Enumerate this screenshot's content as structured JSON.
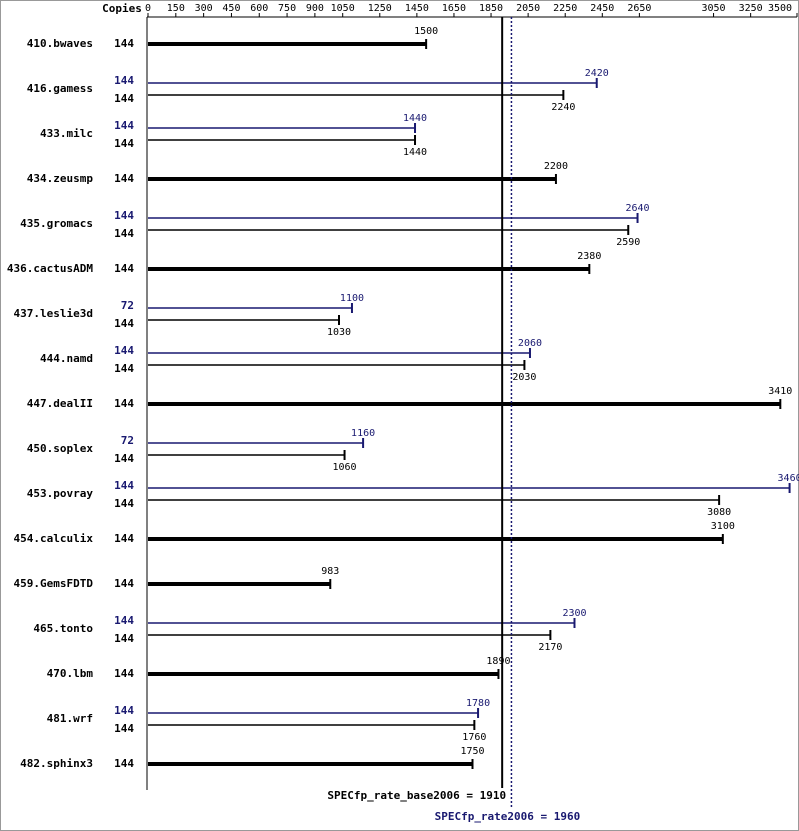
{
  "chart_data": {
    "type": "bar",
    "copies_header": "Copies",
    "categories": [
      "410.bwaves",
      "416.gamess",
      "433.milc",
      "434.zeusmp",
      "435.gromacs",
      "436.cactusADM",
      "437.leslie3d",
      "444.namd",
      "447.dealII",
      "450.soplex",
      "453.povray",
      "454.calculix",
      "459.GemsFDTD",
      "465.tonto",
      "470.lbm",
      "481.wrf",
      "482.sphinx3"
    ],
    "series": [
      {
        "color": "#000000",
        "values": [
          1500,
          2240,
          1440,
          2200,
          2590,
          2380,
          1030,
          2030,
          3410,
          1060,
          3080,
          3100,
          983,
          2170,
          1890,
          1760,
          1750
        ],
        "copies": [
          144,
          144,
          144,
          144,
          144,
          144,
          144,
          144,
          144,
          144,
          144,
          144,
          144,
          144,
          144,
          144,
          144
        ]
      },
      {
        "color": "#191970",
        "values": [
          null,
          2420,
          1440,
          null,
          2640,
          null,
          1100,
          2060,
          null,
          1160,
          3460,
          null,
          null,
          2300,
          null,
          1780,
          null
        ],
        "copies": [
          null,
          144,
          144,
          null,
          144,
          null,
          72,
          144,
          null,
          72,
          144,
          null,
          null,
          144,
          null,
          144,
          null
        ]
      }
    ],
    "xlim": [
      0,
      3500
    ],
    "xticks": [
      0,
      150,
      300,
      450,
      600,
      750,
      900,
      1050,
      1250,
      1450,
      1650,
      1850,
      2050,
      2250,
      2450,
      2650,
      3050,
      3250,
      3500
    ],
    "reference_lines": [
      {
        "value": 1910,
        "label": "SPECfp_rate_base2006 = 1910",
        "color": "#000000",
        "style": "solid"
      },
      {
        "value": 1960,
        "label": "SPECfp_rate2006 = 1960",
        "color": "#191970",
        "style": "dotted"
      }
    ]
  }
}
